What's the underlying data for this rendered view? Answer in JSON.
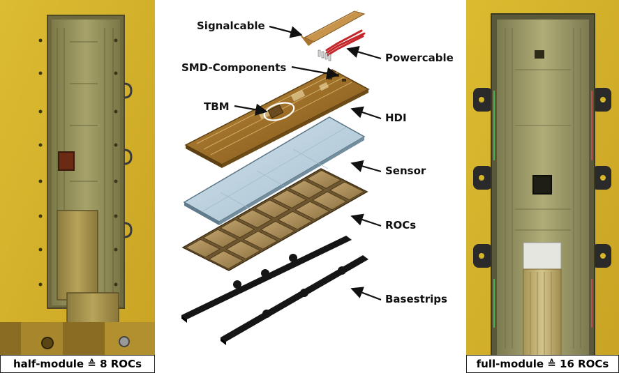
{
  "captions": {
    "left": "half-module ≙ 8 ROCs",
    "right": "full-module ≙ 16 ROCs"
  },
  "labels": {
    "signalcable": "Signalcable",
    "powercable": "Powercable",
    "smd": "SMD-Components",
    "tbm": "TBM",
    "hdi": "HDI",
    "sensor": "Sensor",
    "rocs": "ROCs",
    "basestrips": "Basestrips"
  },
  "colors": {
    "yellow_bg": "#d8b62a",
    "pcb_gold": "#a57a2e",
    "sensor_blue": "#b9cfdc",
    "roc_tan": "#a68a55",
    "basestrip": "#151515",
    "powercable_red": "#c4262a"
  }
}
